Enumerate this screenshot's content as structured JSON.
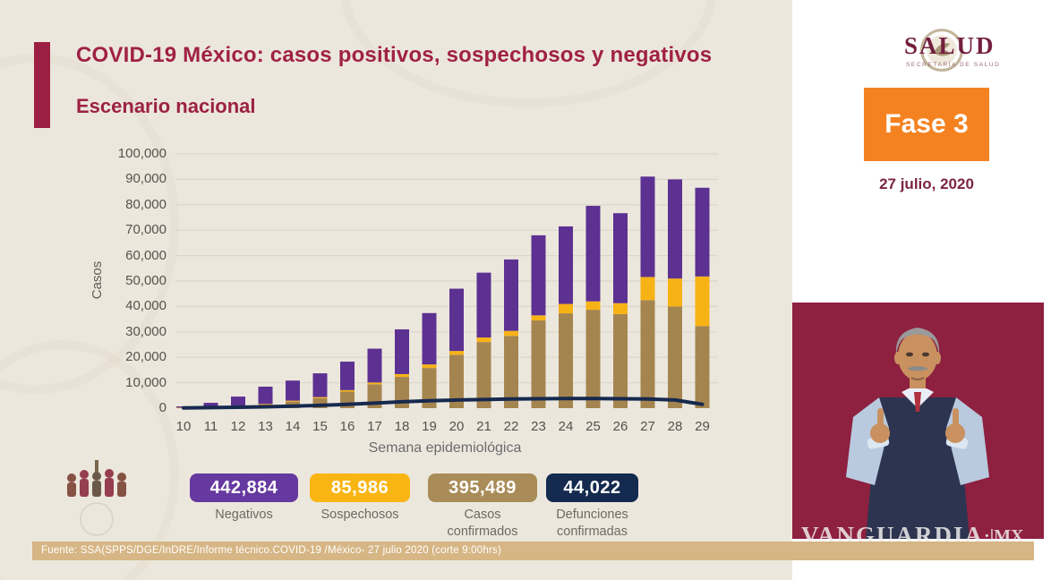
{
  "slide": {
    "title": "COVID-19 México: casos positivos, sospechosos y negativos",
    "subtitle": "Escenario nacional",
    "source_note": "Fuente: SSA(SPPS/DGE/InDRE/Informe técnico.COVID-19 /México- 27 julio 2020 (corte 9:00hrs)"
  },
  "header_right": {
    "logo_title": "SALUD",
    "logo_subtitle": "SECRETARÍA DE SALUD",
    "phase_label": "Fase 3",
    "date": "27 julio, 2020"
  },
  "watermark": {
    "text": "VANGUARDIA",
    "suffix": "·|MX"
  },
  "colors": {
    "slide_background": "#ece7dd",
    "maroon": "#a02145",
    "bar_negativos": "#5c3192",
    "bar_sospechosos": "#f7b216",
    "bar_confirmados": "#a5854f",
    "line_defunciones": "#16294e",
    "badge_negativos": "#6639a0",
    "badge_sospechosos": "#f9b513",
    "badge_confirmados": "#a98c58",
    "badge_defunciones": "#142a4e",
    "phase_orange": "#f58220",
    "source_bar": "#d6b685",
    "interpreter_background": "#8e2040",
    "gridline": "#dbd6ca"
  },
  "chart_data": {
    "type": "bar",
    "stacked": true,
    "grid": true,
    "title": "Escenario nacional",
    "xlabel": "Semana epidemiológica",
    "ylabel": "Casos",
    "ylim": [
      0,
      100000
    ],
    "ytick_step": 10000,
    "categories": [
      10,
      11,
      12,
      13,
      14,
      15,
      16,
      17,
      18,
      19,
      20,
      21,
      22,
      23,
      24,
      25,
      26,
      27,
      28,
      29
    ],
    "series": [
      {
        "name": "Casos confirmados",
        "kind": "bar",
        "color": "#a5854f",
        "values": [
          150,
          400,
          800,
          1400,
          2600,
          3900,
          6500,
          9400,
          12300,
          15800,
          21000,
          26000,
          28400,
          34500,
          37300,
          38700,
          37000,
          42500,
          40000,
          32300
        ]
      },
      {
        "name": "Sospechosos",
        "kind": "bar",
        "color": "#f7b216",
        "values": [
          50,
          100,
          150,
          250,
          350,
          450,
          600,
          700,
          1100,
          1400,
          1500,
          1800,
          2000,
          2000,
          3700,
          3300,
          4300,
          9100,
          11000,
          19500
        ]
      },
      {
        "name": "Negativos",
        "kind": "bar",
        "color": "#5c3192",
        "values": [
          500,
          1600,
          3600,
          6800,
          7900,
          9350,
          11200,
          13300,
          17600,
          20200,
          24500,
          25500,
          28100,
          31500,
          30500,
          37600,
          35400,
          39500,
          39000,
          34900
        ]
      },
      {
        "name": "Defunciones confirmadas",
        "kind": "line",
        "color": "#16294e",
        "values": [
          100,
          200,
          350,
          550,
          800,
          1100,
          1500,
          2000,
          2500,
          2900,
          3200,
          3400,
          3600,
          3700,
          3800,
          3800,
          3700,
          3600,
          3200,
          1500
        ]
      }
    ],
    "legend_position": "bottom"
  },
  "legend": {
    "items": [
      {
        "value": "442,884",
        "label": "Negativos",
        "color": "#6639a0"
      },
      {
        "value": "85,986",
        "label": "Sospechosos",
        "color": "#f9b513"
      },
      {
        "value": "395,489",
        "label": "Casos\nconfirmados",
        "color": "#a98c58"
      },
      {
        "value": "44,022",
        "label": "Defunciones\nconfirmadas",
        "color": "#142a4e"
      }
    ]
  }
}
